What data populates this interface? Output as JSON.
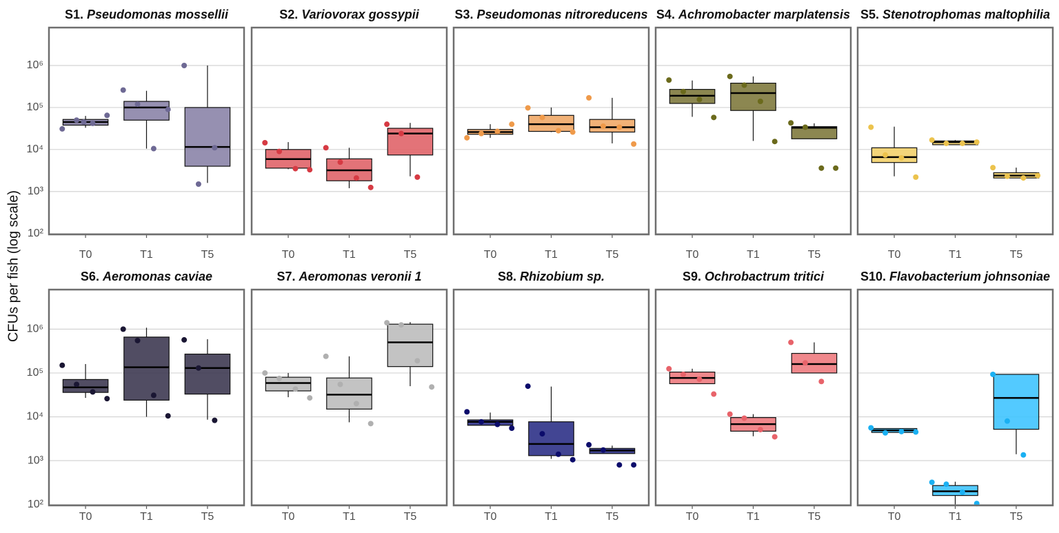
{
  "chart_data": {
    "type": "box",
    "ylabel": "CFUs per fish (log scale)",
    "log_scale": true,
    "grid": true,
    "ylim": [
      95,
      8000000
    ],
    "yticks": [
      {
        "value": 100,
        "label": "10²"
      },
      {
        "value": 1000,
        "label": "10³"
      },
      {
        "value": 10000,
        "label": "10⁴"
      },
      {
        "value": 100000,
        "label": "10⁵"
      },
      {
        "value": 1000000,
        "label": "10⁶"
      }
    ],
    "categories": [
      "T0",
      "T1",
      "T5"
    ],
    "panels": [
      {
        "id": "S1.",
        "species": "Pseudomonas mossellii",
        "color": "#8b84a8",
        "point_color": "#6e6994",
        "boxes": [
          {
            "whisker_low": 33000,
            "q1": 38000,
            "median": 45000,
            "q3": 52000,
            "whisker_high": 63000,
            "points": [
              31000,
              50000,
              42000,
              65000,
              45000
            ]
          },
          {
            "whisker_low": 10500,
            "q1": 50000,
            "median": 100000,
            "q3": 140000,
            "whisker_high": 250000,
            "points": [
              260000,
              120000,
              10500,
              90000
            ]
          },
          {
            "whisker_low": 1600,
            "q1": 4000,
            "median": 11500,
            "q3": 100000,
            "whisker_high": 1000000,
            "points": [
              1000000,
              1500,
              11000
            ]
          }
        ]
      },
      {
        "id": "S2.",
        "species": "Variovorax gossypii",
        "color": "#e06469",
        "point_color": "#d63a43",
        "boxes": [
          {
            "whisker_low": 3400,
            "q1": 3600,
            "median": 5900,
            "q3": 10000,
            "whisker_high": 15000,
            "points": [
              14500,
              9000,
              3500,
              3300
            ]
          },
          {
            "whisker_low": 1200,
            "q1": 1800,
            "median": 3200,
            "q3": 6000,
            "whisker_high": 11000,
            "points": [
              11000,
              5000,
              2100,
              1250
            ]
          },
          {
            "whisker_low": 2300,
            "q1": 7400,
            "median": 24000,
            "q3": 32000,
            "whisker_high": 43000,
            "points": [
              40000,
              24000,
              2200
            ]
          }
        ]
      },
      {
        "id": "S3.",
        "species": "Pseudomonas nitroreducens",
        "color": "#f0a868",
        "point_color": "#ef9a4a",
        "boxes": [
          {
            "whisker_low": 19000,
            "q1": 23000,
            "median": 26000,
            "q3": 30000,
            "whisker_high": 40000,
            "points": [
              19000,
              24000,
              27000,
              40000
            ]
          },
          {
            "whisker_low": 26000,
            "q1": 27000,
            "median": 40000,
            "q3": 65000,
            "whisker_high": 100000,
            "points": [
              98000,
              58000,
              28000,
              26000
            ]
          },
          {
            "whisker_low": 14000,
            "q1": 26000,
            "median": 34000,
            "q3": 52000,
            "whisker_high": 170000,
            "points": [
              170000,
              36000,
              34000,
              13500
            ]
          }
        ]
      },
      {
        "id": "S4.",
        "species": "Achromobacter marplatensis",
        "color": "#7f7a3e",
        "point_color": "#6b6a1c",
        "boxes": [
          {
            "whisker_low": 60000,
            "q1": 125000,
            "median": 190000,
            "q3": 270000,
            "whisker_high": 440000,
            "points": [
              450000,
              240000,
              155000,
              58000
            ]
          },
          {
            "whisker_low": 16000,
            "q1": 85000,
            "median": 220000,
            "q3": 380000,
            "whisker_high": 550000,
            "points": [
              550000,
              340000,
              140000,
              15500
            ]
          },
          {
            "whisker_low": 18000,
            "q1": 18000,
            "median": 33000,
            "q3": 35000,
            "whisker_high": 42000,
            "points": [
              43000,
              34000,
              3600,
              3600
            ]
          }
        ]
      },
      {
        "id": "S5.",
        "species": "Stenotrophomas maltophilia",
        "color": "#f2d06b",
        "point_color": "#ecc34d",
        "boxes": [
          {
            "whisker_low": 2300,
            "q1": 4900,
            "median": 6600,
            "q3": 11000,
            "whisker_high": 35000,
            "points": [
              34000,
              7400,
              6300,
              2200
            ]
          },
          {
            "whisker_low": 13000,
            "q1": 13000,
            "median": 15000,
            "q3": 16000,
            "whisker_high": 16800,
            "points": [
              16800,
              14000,
              14000,
              15000
            ]
          },
          {
            "whisker_low": 2100,
            "q1": 2100,
            "median": 2400,
            "q3": 2800,
            "whisker_high": 3700,
            "points": [
              3700,
              2300,
              2100,
              2400
            ]
          }
        ]
      },
      {
        "id": "S6.",
        "species": "Aeromonas caviae",
        "color": "#3e3a52",
        "point_color": "#1a1633",
        "boxes": [
          {
            "whisker_low": 27000,
            "q1": 36000,
            "median": 47000,
            "q3": 71000,
            "whisker_high": 160000,
            "points": [
              150000,
              55000,
              37000,
              26000
            ]
          },
          {
            "whisker_low": 10000,
            "q1": 24000,
            "median": 135000,
            "q3": 660000,
            "whisker_high": 1080000,
            "points": [
              1000000,
              550000,
              31000,
              10500
            ]
          },
          {
            "whisker_low": 8600,
            "q1": 33000,
            "median": 130000,
            "q3": 270000,
            "whisker_high": 590000,
            "points": [
              570000,
              130000,
              8300
            ]
          }
        ]
      },
      {
        "id": "S7.",
        "species": "Aeromonas veronii 1",
        "color": "#bdbdbd",
        "point_color": "#b0b0b0",
        "boxes": [
          {
            "whisker_low": 28000,
            "q1": 39000,
            "median": 59000,
            "q3": 80000,
            "whisker_high": 100000,
            "points": [
              100000,
              75000,
              43000,
              27000
            ]
          },
          {
            "whisker_low": 7500,
            "q1": 15000,
            "median": 32000,
            "q3": 77000,
            "whisker_high": 240000,
            "points": [
              240000,
              55000,
              20000,
              7000
            ]
          },
          {
            "whisker_low": 50000,
            "q1": 140000,
            "median": 500000,
            "q3": 1300000,
            "whisker_high": 1450000,
            "points": [
              1400000,
              1250000,
              190000,
              48000
            ]
          }
        ]
      },
      {
        "id": "S8.",
        "species": "Rhizobium sp.",
        "color": "#2e3187",
        "point_color": "#0b0b6b",
        "boxes": [
          {
            "whisker_low": 6400,
            "q1": 6400,
            "median": 7700,
            "q3": 8500,
            "whisker_high": 12500,
            "points": [
              13000,
              7700,
              6700,
              5500
            ]
          },
          {
            "whisker_low": 1100,
            "q1": 1300,
            "median": 2400,
            "q3": 7700,
            "whisker_high": 49000,
            "points": [
              50000,
              4100,
              1400,
              1050
            ]
          },
          {
            "whisker_low": 1450,
            "q1": 1450,
            "median": 1700,
            "q3": 1900,
            "whisker_high": 2200,
            "points": [
              2300,
              1750,
              800,
              800
            ]
          }
        ]
      },
      {
        "id": "S9.",
        "species": "Ochrobactrum tritici",
        "color": "#ee7b7f",
        "point_color": "#e8636a",
        "boxes": [
          {
            "whisker_low": 57000,
            "q1": 57000,
            "median": 77000,
            "q3": 105000,
            "whisker_high": 125000,
            "points": [
              125000,
              93000,
              72000,
              33000
            ]
          },
          {
            "whisker_low": 3600,
            "q1": 4700,
            "median": 6800,
            "q3": 9600,
            "whisker_high": 11500,
            "points": [
              11500,
              9300,
              5100,
              3500
            ]
          },
          {
            "whisker_low": 100000,
            "q1": 100000,
            "median": 160000,
            "q3": 280000,
            "whisker_high": 500000,
            "points": [
              500000,
              170000,
              64000
            ]
          }
        ]
      },
      {
        "id": "S10.",
        "species": "Flavobacterium johnsoniae",
        "color": "#40c4ff",
        "point_color": "#1ab0f2",
        "boxes": [
          {
            "whisker_low": 4400,
            "q1": 4400,
            "median": 4900,
            "q3": 5400,
            "whisker_high": 5400,
            "points": [
              5600,
              4300,
              4600,
              4500
            ]
          },
          {
            "whisker_low": 100,
            "q1": 160,
            "median": 200,
            "q3": 270,
            "whisker_high": 330,
            "points": [
              320,
              290,
              190,
              105
            ]
          },
          {
            "whisker_low": 1400,
            "q1": 5200,
            "median": 27000,
            "q3": 93000,
            "whisker_high": 93000,
            "points": [
              93000,
              8000,
              1350
            ]
          }
        ]
      }
    ]
  }
}
